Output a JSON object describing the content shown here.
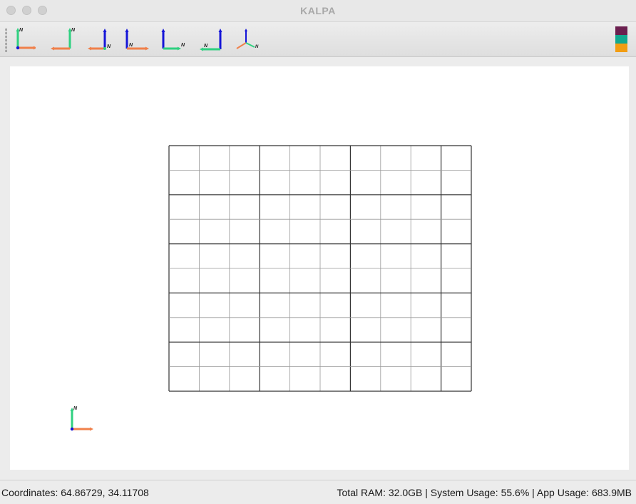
{
  "window": {
    "title": "KALPA"
  },
  "toolbar": {
    "north_label": "N",
    "tools": [
      {
        "id": "axis-view-1",
        "icon": "axis-icon"
      },
      {
        "id": "axis-view-2",
        "icon": "axis-icon"
      },
      {
        "id": "axis-view-3",
        "icon": "axis-icon"
      },
      {
        "id": "axis-view-4",
        "icon": "axis-icon"
      },
      {
        "id": "axis-view-5",
        "icon": "axis-icon"
      },
      {
        "id": "axis-view-6",
        "icon": "axis-icon"
      },
      {
        "id": "axis-view-3d",
        "icon": "axis-3d-icon"
      }
    ],
    "swatches": [
      "#6b1f4f",
      "#12a88f",
      "#f29d12"
    ]
  },
  "canvas": {
    "grid": {
      "columns": 10,
      "rows": 10,
      "major_every_col": 3,
      "major_every_row": 2
    },
    "compass_label": "N"
  },
  "colors": {
    "axis_green": "#2fd080",
    "axis_orange": "#f0804a",
    "axis_blue": "#1515d8",
    "grid_major": "#333333",
    "grid_minor": "#9a9a9a"
  },
  "status": {
    "coordinates": "Coordinates: 64.86729, 34.11708",
    "system": "Total RAM: 32.0GB | System Usage: 55.6% | App Usage: 683.9MB"
  }
}
